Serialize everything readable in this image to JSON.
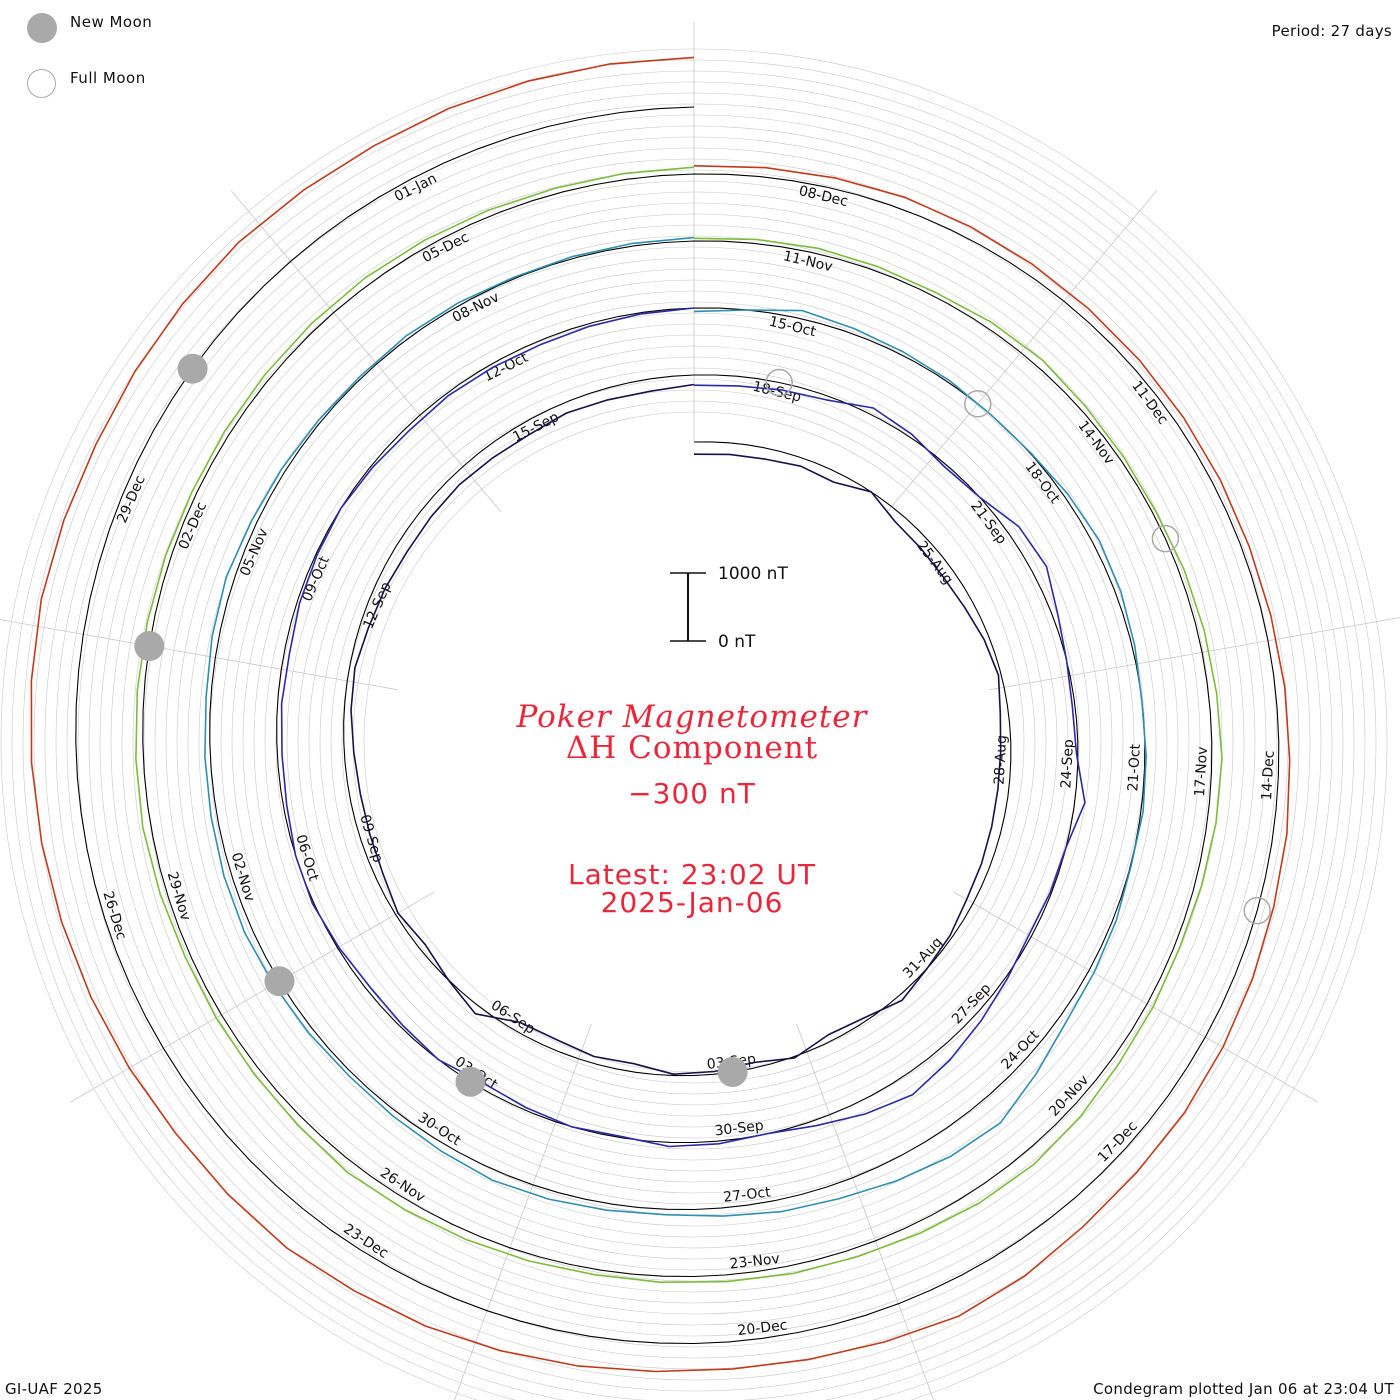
{
  "legend": {
    "new_moon_label": "New Moon",
    "full_moon_label": "Full Moon"
  },
  "period_label": "Period: 27 days",
  "credit": "GI-UAF 2025",
  "plotted_label": "Condegram plotted Jan 06 at 23:04 UT",
  "center": {
    "title_line1": "Poker Magnetometer",
    "title_line2": "ΔH Component",
    "baseline": "−300 nT",
    "latest_line1": "Latest: 23:02 UT",
    "latest_line2": "2025-Jan-06",
    "scale_top": "1000 nT",
    "scale_bottom": "0 nT"
  },
  "colors": {
    "accent_red": "#e8283a",
    "moon_gray": "#a9a9a9",
    "grid_gray": "#c8c8c8"
  },
  "chart_data": {
    "type": "line",
    "chart_kind": "spiral condegram",
    "period_days": 27,
    "baseline_nT": -300,
    "scale_nT": [
      0,
      1000
    ],
    "series": [
      {
        "color": "#1a0f4a",
        "start_date": "2024-08-21",
        "values_nT": [
          120,
          130,
          140,
          180,
          150,
          300,
          160,
          140,
          130,
          160,
          220,
          260,
          180,
          150,
          140,
          150,
          170,
          190,
          260,
          300,
          380,
          250,
          200,
          320,
          220,
          260,
          280,
          180,
          200,
          150,
          160,
          420,
          300,
          200,
          260,
          180,
          150,
          140,
          160,
          200,
          220,
          170,
          150,
          120,
          130,
          140,
          120,
          110,
          150,
          130,
          120,
          160
        ]
      },
      {
        "color": "#2a2aa8",
        "start_date": "2024-09-17",
        "values_nT": [
          150,
          160,
          200,
          240,
          400,
          350,
          260,
          300,
          480,
          520,
          380,
          300,
          260,
          280,
          450,
          300,
          280,
          260,
          330,
          420,
          520,
          600,
          500,
          380,
          300,
          340,
          360,
          280,
          300,
          260,
          220,
          300,
          260,
          240,
          280,
          320,
          300,
          250,
          230,
          240,
          220,
          260,
          280,
          300,
          270,
          240,
          260,
          250,
          240,
          260,
          280,
          300
        ]
      },
      {
        "color": "#2f8fb0",
        "start_date": "2024-10-14",
        "values_nT": [
          250,
          300,
          420,
          380,
          350,
          330,
          300,
          310,
          360,
          400,
          380,
          340,
          300,
          320,
          330,
          310,
          350,
          380,
          420,
          560,
          720,
          680,
          600,
          520,
          480,
          420,
          380,
          400,
          430,
          450,
          410,
          380,
          360,
          380,
          400,
          420,
          410,
          390,
          380,
          370,
          400,
          420,
          380,
          360,
          340,
          330,
          350,
          340,
          320,
          330,
          340,
          350
        ]
      },
      {
        "color": "#7cbc3a",
        "start_date": "2024-11-10",
        "values_nT": [
          340,
          360,
          380,
          370,
          360,
          400,
          420,
          380,
          360,
          350,
          380,
          400,
          420,
          450,
          430,
          400,
          380,
          400,
          420,
          480,
          520,
          500,
          460,
          430,
          420,
          400,
          390,
          380,
          400,
          420,
          440,
          460,
          420,
          400,
          390,
          380,
          400,
          420,
          410,
          400,
          390,
          380,
          370,
          380,
          390,
          400,
          410,
          400,
          390,
          380,
          390,
          400
        ]
      },
      {
        "color": "#c23a1c",
        "start_date": "2024-12-07",
        "values_nT": [
          420,
          440,
          460,
          480,
          470,
          460,
          450,
          440,
          430,
          420,
          410,
          420,
          440,
          460,
          500,
          520,
          560,
          600,
          640,
          660,
          700,
          780,
          820,
          760,
          720,
          700,
          720,
          760,
          800,
          840,
          860,
          900,
          880,
          860,
          880,
          900,
          920,
          940,
          960,
          980,
          1000,
          980,
          960,
          980,
          1000,
          1020,
          1000,
          990,
          1010,
          1020,
          1030,
          1030
        ]
      }
    ],
    "new_moon_dates": [
      "2024-09-03",
      "2024-10-03",
      "2024-11-01",
      "2024-12-01",
      "2024-12-30"
    ],
    "full_moon_dates": [
      "2024-09-18",
      "2024-10-17",
      "2024-11-15",
      "2024-12-15"
    ],
    "ring_date_labels": [
      [
        "25-Aug",
        "28-Aug",
        "31-Aug",
        "03-Sep",
        "06-Sep",
        "09-Sep",
        "12-Sep",
        "15-Sep",
        "18-Sep"
      ],
      [
        "21-Sep",
        "24-Sep",
        "27-Sep",
        "30-Sep",
        "03-Oct",
        "06-Oct",
        "09-Oct",
        "12-Oct",
        "15-Oct"
      ],
      [
        "18-Oct",
        "21-Oct",
        "24-Oct",
        "27-Oct",
        "30-Oct",
        "02-Nov",
        "05-Nov",
        "08-Nov",
        "11-Nov"
      ],
      [
        "14-Nov",
        "17-Nov",
        "20-Nov",
        "23-Nov",
        "26-Nov",
        "29-Nov",
        "02-Dec",
        "05-Dec",
        "08-Dec"
      ],
      [
        "11-Dec",
        "14-Dec",
        "17-Dec",
        "20-Dec",
        "23-Dec",
        "26-Dec",
        "29-Dec",
        "01-Jan"
      ]
    ]
  }
}
